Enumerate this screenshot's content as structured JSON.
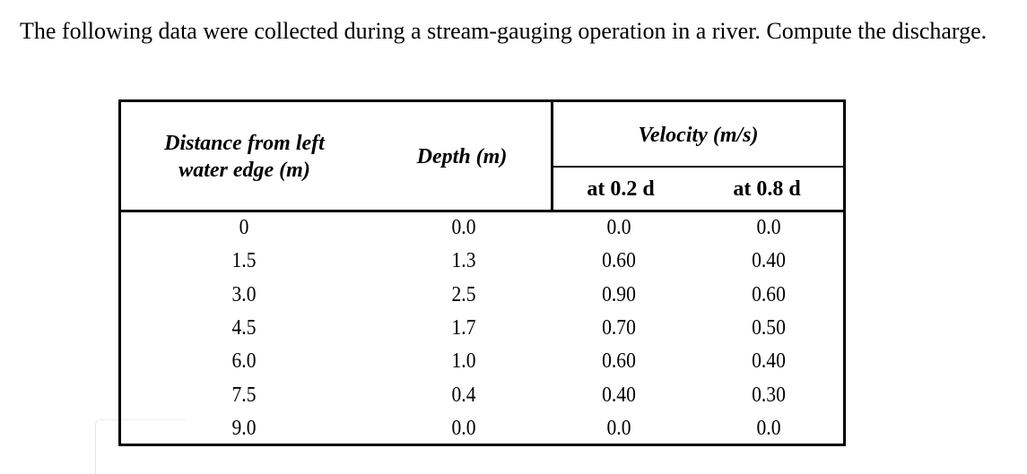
{
  "problem": {
    "text": "The following data were collected during a stream-gauging operation in a river. Compute the discharge."
  },
  "table": {
    "headers": {
      "distance": "Distance from left water edge (m)",
      "distance_line1": "Distance from left",
      "distance_line2": "water edge (m)",
      "depth": "Depth (m)",
      "velocity": "Velocity (m/s)",
      "v02": "at 0.2 d",
      "v08": "at 0.8 d"
    },
    "rows": [
      [
        "0",
        "0.0",
        "0.0",
        "0.0"
      ],
      [
        "1.5",
        "1.3",
        "0.60",
        "0.40"
      ],
      [
        "3.0",
        "2.5",
        "0.90",
        "0.60"
      ],
      [
        "4.5",
        "1.7",
        "0.70",
        "0.50"
      ],
      [
        "6.0",
        "1.0",
        "0.60",
        "0.40"
      ],
      [
        "7.5",
        "0.4",
        "0.40",
        "0.30"
      ],
      [
        "9.0",
        "0.0",
        "0.0",
        "0.0"
      ]
    ]
  }
}
